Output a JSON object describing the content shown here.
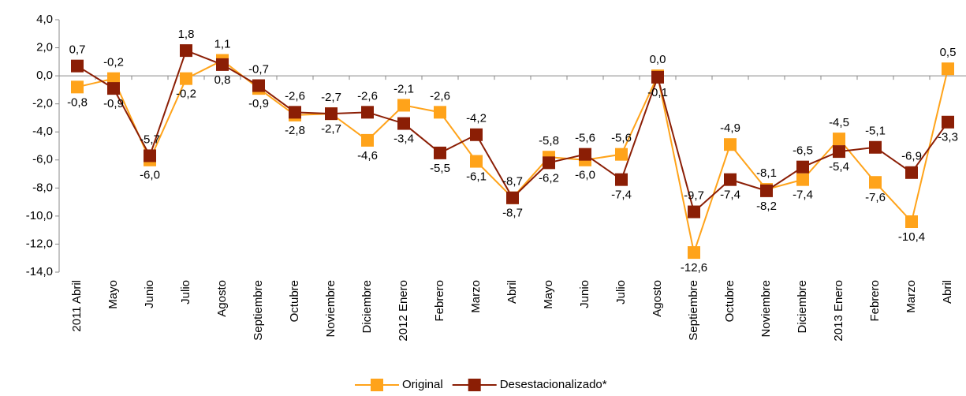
{
  "chart_data": {
    "type": "line",
    "categories": [
      "2011 Abril",
      "Mayo",
      "Junio",
      "Julio",
      "Agosto",
      "Septiembre",
      "Octubre",
      "Noviembre",
      "Diciembre",
      "2012 Enero",
      "Febrero",
      "Marzo",
      "Abril",
      "Mayo",
      "Junio",
      "Julio",
      "Agosto",
      "Septiembre",
      "Octubre",
      "Noviembre",
      "Diciembre",
      "2013 Enero",
      "Febrero",
      "Marzo",
      "Abril"
    ],
    "series": [
      {
        "name": "Original",
        "color": "#FFA31A",
        "values": [
          -0.8,
          -0.2,
          -6.0,
          -0.2,
          1.1,
          -0.9,
          -2.8,
          -2.7,
          -4.6,
          -2.1,
          -2.6,
          -6.1,
          -8.7,
          -5.8,
          -6.0,
          -5.6,
          0.0,
          -12.6,
          -4.9,
          -8.1,
          -7.4,
          -4.5,
          -7.6,
          -10.4,
          0.5
        ],
        "value_labels": [
          "-0,8",
          "-0,2",
          "-6,0",
          "-0,2",
          "1,1",
          "-0,9",
          "-2,8",
          "-2,7",
          "-4,6",
          "-2,1",
          "-2,6",
          "-6,1",
          "-8,7",
          "-5,8",
          "-6,0",
          "-5,6",
          "0,0",
          "-12,6",
          "-4,9",
          "-8,1",
          "-7,4",
          "-4,5",
          "-7,6",
          "-10,4",
          "0,5"
        ]
      },
      {
        "name": "Desestacionalizado*",
        "color": "#8B1E05",
        "values": [
          0.7,
          -0.9,
          -5.7,
          1.8,
          0.8,
          -0.7,
          -2.6,
          -2.7,
          -2.6,
          -3.4,
          -5.5,
          -4.2,
          -8.7,
          -6.2,
          -5.6,
          -7.4,
          -0.1,
          -9.7,
          -7.4,
          -8.2,
          -6.5,
          -5.4,
          -5.1,
          -6.9,
          -3.3
        ],
        "value_labels": [
          "0,7",
          "-0,9",
          "-5,7",
          "1,8",
          "0,8",
          "-0,7",
          "-2,6",
          "-2,7",
          "-2,6",
          "-3,4",
          "-5,5",
          "-4,2",
          "-8,7",
          "-6,2",
          "-5,6",
          "-7,4",
          "-0,1",
          "-9,7",
          "-7,4",
          "-8,2",
          "-6,5",
          "-5,4",
          "-5,1",
          "-6,9",
          "-3,3"
        ]
      }
    ],
    "ylim": [
      -14,
      4
    ],
    "yticks": [
      {
        "value": -14,
        "label": "-14,0"
      },
      {
        "value": -12,
        "label": "-12,0"
      },
      {
        "value": -10,
        "label": "-10,0"
      },
      {
        "value": -8,
        "label": "-8,0"
      },
      {
        "value": -6,
        "label": "-6,0"
      },
      {
        "value": -4,
        "label": "-4,0"
      },
      {
        "value": -2,
        "label": "-2,0"
      },
      {
        "value": 0,
        "label": "0,0"
      },
      {
        "value": 2,
        "label": "2,0"
      },
      {
        "value": 4,
        "label": "4,0"
      }
    ],
    "legend": "bottom"
  }
}
